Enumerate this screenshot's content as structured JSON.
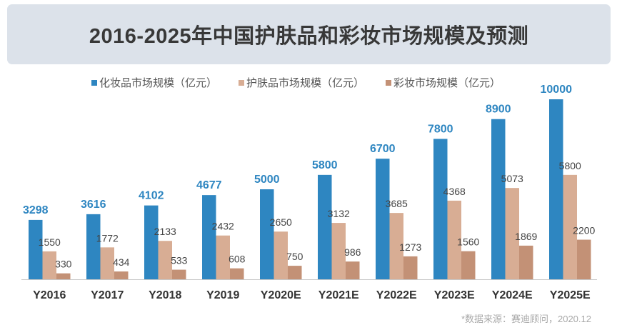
{
  "chart_data": {
    "type": "bar",
    "title": "2016-2025年中国护肤品和彩妆市场规模及预测",
    "categories": [
      "Y2016",
      "Y2017",
      "Y2018",
      "Y2019",
      "Y2020E",
      "Y2021E",
      "Y2022E",
      "Y2023E",
      "Y2024E",
      "Y2025E"
    ],
    "series": [
      {
        "name": "化妆品市场规模（亿元）",
        "color": "#2e86c1",
        "values": [
          3298,
          3616,
          4102,
          4677,
          5000,
          5800,
          6700,
          7800,
          8900,
          10000
        ]
      },
      {
        "name": "护肤品市场规模（亿元）",
        "color": "#d8ad94",
        "values": [
          1550,
          1772,
          2133,
          2432,
          2650,
          3132,
          3685,
          4368,
          5073,
          5800
        ]
      },
      {
        "name": "彩妆市场规模（亿元）",
        "color": "#c39176",
        "values": [
          330,
          434,
          533,
          608,
          750,
          986,
          1273,
          1560,
          1869,
          2200
        ]
      }
    ],
    "ylim": [
      0,
      10000
    ],
    "legend": "top",
    "grid": false,
    "source": "*数据来源：赛迪顾问，2020.12"
  }
}
